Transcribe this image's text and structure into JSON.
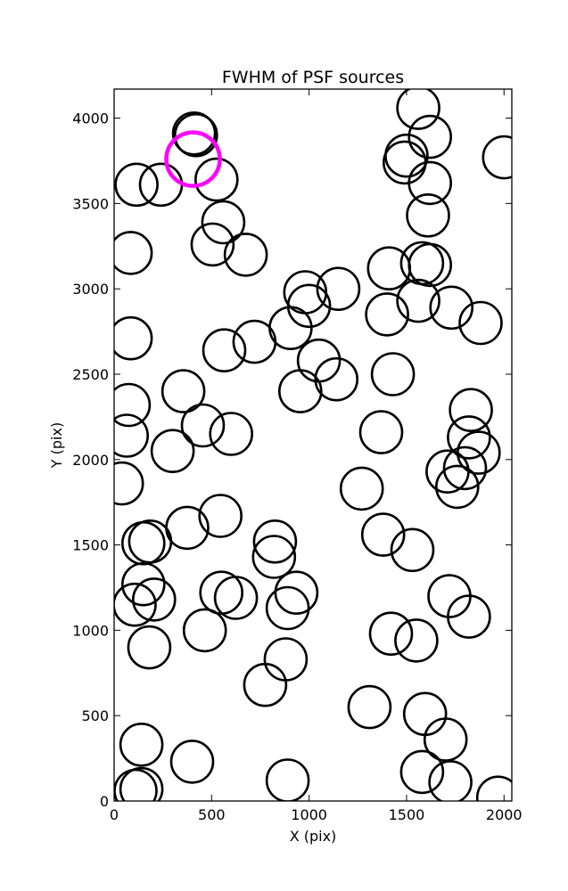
{
  "chart_data": {
    "type": "scatter",
    "title": "FWHM of PSF sources",
    "xlabel": "X (pix)",
    "ylabel": "Y (pix)",
    "xlim": [
      0,
      2040
    ],
    "ylim": [
      0,
      4170
    ],
    "xticks": [
      0,
      500,
      1000,
      1500,
      2000
    ],
    "yticks": [
      0,
      500,
      1000,
      1500,
      2000,
      2500,
      3000,
      3500,
      4000
    ],
    "grid": false,
    "marker": "open-circle",
    "default_color": "#000000",
    "highlight_color": "#ff00ff",
    "series": [
      {
        "points": [
          [
            410,
            3910
          ],
          [
            420,
            3900
          ],
          [
            115,
            3610
          ],
          [
            240,
            3610
          ],
          [
            525,
            3640
          ],
          [
            560,
            3390
          ],
          [
            505,
            3260
          ],
          [
            675,
            3200
          ],
          [
            85,
            3210
          ],
          [
            1560,
            4060
          ],
          [
            1620,
            3890
          ],
          [
            1500,
            3780
          ],
          [
            1490,
            3740
          ],
          [
            1620,
            3620
          ],
          [
            1610,
            3430
          ],
          [
            2000,
            3770
          ],
          [
            1410,
            3120
          ],
          [
            1580,
            3150
          ],
          [
            1620,
            3140
          ],
          [
            1150,
            3000
          ],
          [
            980,
            2980
          ],
          [
            1000,
            2900
          ],
          [
            905,
            2770
          ],
          [
            1400,
            2850
          ],
          [
            1560,
            2930
          ],
          [
            1730,
            2890
          ],
          [
            1880,
            2800
          ],
          [
            85,
            2710
          ],
          [
            565,
            2640
          ],
          [
            720,
            2690
          ],
          [
            1050,
            2580
          ],
          [
            1140,
            2470
          ],
          [
            955,
            2400
          ],
          [
            1430,
            2500
          ],
          [
            355,
            2400
          ],
          [
            75,
            2320
          ],
          [
            65,
            2140
          ],
          [
            455,
            2200
          ],
          [
            600,
            2150
          ],
          [
            300,
            2050
          ],
          [
            40,
            1860
          ],
          [
            1370,
            2160
          ],
          [
            1830,
            2290
          ],
          [
            1820,
            2130
          ],
          [
            1870,
            2040
          ],
          [
            1710,
            1930
          ],
          [
            1800,
            1950
          ],
          [
            1760,
            1840
          ],
          [
            1270,
            1830
          ],
          [
            375,
            1600
          ],
          [
            545,
            1670
          ],
          [
            150,
            1510
          ],
          [
            185,
            1520
          ],
          [
            825,
            1520
          ],
          [
            820,
            1430
          ],
          [
            1380,
            1560
          ],
          [
            1530,
            1470
          ],
          [
            150,
            1270
          ],
          [
            105,
            1150
          ],
          [
            205,
            1180
          ],
          [
            550,
            1220
          ],
          [
            625,
            1190
          ],
          [
            935,
            1220
          ],
          [
            890,
            1130
          ],
          [
            465,
            1000
          ],
          [
            180,
            900
          ],
          [
            1420,
            980
          ],
          [
            1550,
            940
          ],
          [
            1720,
            1200
          ],
          [
            1820,
            1080
          ],
          [
            880,
            830
          ],
          [
            775,
            680
          ],
          [
            1310,
            550
          ],
          [
            1595,
            510
          ],
          [
            1700,
            360
          ],
          [
            140,
            330
          ],
          [
            400,
            230
          ],
          [
            1580,
            170
          ],
          [
            1725,
            110
          ],
          [
            890,
            120
          ],
          [
            110,
            60
          ],
          [
            140,
            70
          ],
          [
            1970,
            20
          ]
        ]
      },
      {
        "points": [
          [
            405,
            3760
          ]
        ],
        "highlight": true
      }
    ]
  }
}
